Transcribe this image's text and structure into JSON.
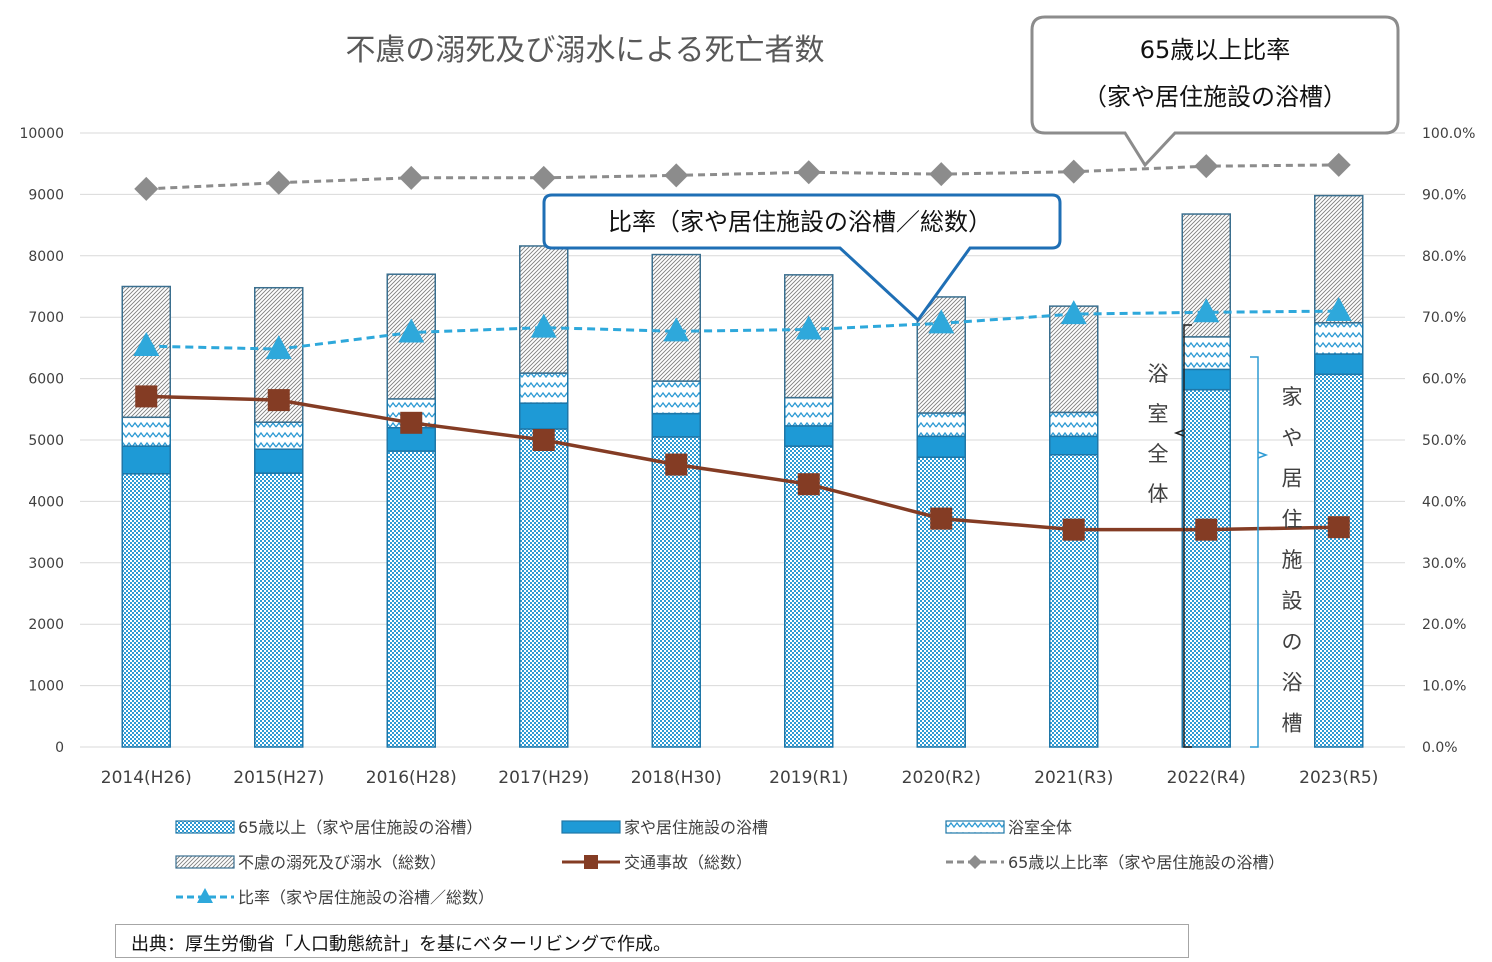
{
  "chart_data": {
    "type": "bar",
    "title": "不慮の溺死及び溺水による死亡者数",
    "categories": [
      "2014(H26)",
      "2015(H27)",
      "2016(H28)",
      "2017(H29)",
      "2018(H30)",
      "2019(R1)",
      "2020(R2)",
      "2021(R3)",
      "2022(R4)",
      "2023(R5)"
    ],
    "ylim": [
      0,
      10000
    ],
    "y_ticks": [
      "0",
      "1000",
      "2000",
      "3000",
      "4000",
      "5000",
      "6000",
      "7000",
      "8000",
      "9000",
      "10000"
    ],
    "y2lim": [
      0,
      100
    ],
    "y2_ticks": [
      "0.0%",
      "10.0%",
      "20.0%",
      "30.0%",
      "40.0%",
      "50.0%",
      "60.0%",
      "70.0%",
      "80.0%",
      "90.0%",
      "100.0%"
    ],
    "grid": true,
    "legend_position": "bottom",
    "series": [
      {
        "name": "65歳以上（家や居住施設の浴槽）",
        "kind": "stacked-bar",
        "axis": "left",
        "color": "#2e9bd4",
        "values": [
          4450,
          4460,
          4820,
          5180,
          5050,
          4900,
          4720,
          4760,
          5820,
          6070
        ]
      },
      {
        "name": "家や居住施設の浴槽",
        "kind": "stacked-bar",
        "axis": "left",
        "color": "#1e9ad6",
        "values": [
          4900,
          4850,
          5200,
          5600,
          5430,
          5230,
          5060,
          5060,
          6150,
          6400
        ]
      },
      {
        "name": "浴室全体",
        "kind": "stacked-bar",
        "axis": "left",
        "color": "#2e9bd4",
        "values": [
          5370,
          5290,
          5670,
          6090,
          5960,
          5690,
          5440,
          5450,
          6680,
          6910
        ]
      },
      {
        "name": "不慮の溺死及び溺水（総数）",
        "kind": "stacked-bar",
        "axis": "left",
        "color": "#7f7f7f",
        "values": [
          7500,
          7480,
          7700,
          8160,
          8020,
          7690,
          7330,
          7180,
          8680,
          8980
        ]
      },
      {
        "name": "交通事故（総数）",
        "kind": "line",
        "axis": "left",
        "color": "#843c24",
        "values": [
          5710,
          5650,
          5280,
          5000,
          4600,
          4280,
          3720,
          3540,
          3540,
          3580
        ]
      },
      {
        "name": "65歳以上比率（家や居住施設の浴槽）",
        "kind": "line",
        "axis": "right",
        "color": "#8c8c8c",
        "values": [
          90.9,
          91.9,
          92.7,
          92.7,
          93.1,
          93.6,
          93.3,
          93.7,
          94.6,
          94.8
        ]
      },
      {
        "name": "比率（家や居住施設の浴槽／総数）",
        "kind": "line",
        "axis": "right",
        "color": "#2ea8db",
        "values": [
          65.3,
          64.8,
          67.5,
          68.3,
          67.7,
          68.0,
          69.0,
          70.5,
          70.8,
          71.0
        ]
      }
    ],
    "annotations": [
      {
        "text_lines": [
          "65歳以上比率",
          "（家や居住施設の浴槽）"
        ],
        "target_series": 5
      },
      {
        "text_lines": [
          "比率（家や居住施設の浴槽／総数）"
        ],
        "target_series": 6
      },
      {
        "text": "浴室全体",
        "bracket": true
      },
      {
        "text": "家や居住施設の浴槽",
        "bracket": true
      }
    ]
  },
  "source_note": "出典：厚生労働省「人口動態統計」を基にベターリビングで作成。"
}
